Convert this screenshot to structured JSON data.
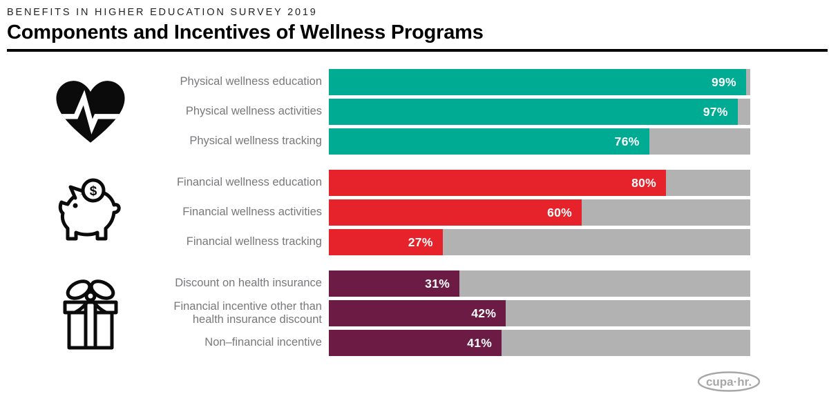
{
  "header": {
    "eyebrow": "BENEFITS IN HIGHER EDUCATION SURVEY 2019",
    "title": "Components and Incentives of Wellness Programs"
  },
  "chart_data": {
    "type": "bar",
    "orientation": "horizontal",
    "unit": "percent",
    "xlim": [
      0,
      100
    ],
    "track_color": "#b3b2b2",
    "groups": [
      {
        "icon": "heart-pulse",
        "color": "#00ab93",
        "rows": [
          {
            "label": "Physical wellness education",
            "value": 99,
            "value_label": "99%"
          },
          {
            "label": "Physical wellness activities",
            "value": 97,
            "value_label": "97%"
          },
          {
            "label": "Physical wellness tracking",
            "value": 76,
            "value_label": "76%"
          }
        ]
      },
      {
        "icon": "piggy-bank",
        "color": "#e6232b",
        "rows": [
          {
            "label": "Financial wellness education",
            "value": 80,
            "value_label": "80%"
          },
          {
            "label": "Financial wellness activities",
            "value": 60,
            "value_label": "60%"
          },
          {
            "label": "Financial wellness tracking",
            "value": 27,
            "value_label": "27%"
          }
        ]
      },
      {
        "icon": "gift",
        "color": "#6c1b44",
        "rows": [
          {
            "label": "Discount on health insurance",
            "value": 31,
            "value_label": "31%"
          },
          {
            "label": "Financial incentive other than health insurance discount",
            "value": 42,
            "value_label": "42%"
          },
          {
            "label": "Non–financial incentive",
            "value": 41,
            "value_label": "41%"
          }
        ]
      }
    ]
  },
  "icons": {
    "piggy_dollar": "$"
  },
  "footer": {
    "logo_text": "cupa·hr."
  }
}
